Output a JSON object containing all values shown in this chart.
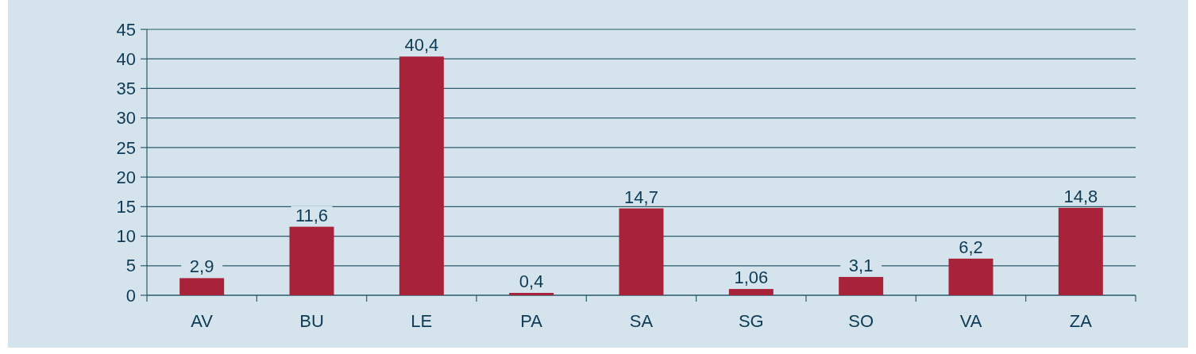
{
  "chart_data": {
    "type": "bar",
    "categories": [
      "AV",
      "BU",
      "LE",
      "PA",
      "SA",
      "SG",
      "SO",
      "VA",
      "ZA"
    ],
    "values": [
      2.9,
      11.6,
      40.4,
      0.4,
      14.7,
      1.06,
      3.1,
      6.2,
      14.8
    ],
    "color": "#a8223a",
    "ylim": [
      0,
      45
    ],
    "yticks": [
      0,
      5,
      10,
      15,
      20,
      25,
      30,
      35,
      40,
      45
    ],
    "value_labels": [
      "2,9",
      "11,6",
      "40,4",
      "0,4",
      "14,7",
      "1,06",
      "3,1",
      "6,2",
      "14,8"
    ],
    "grid": "y"
  }
}
